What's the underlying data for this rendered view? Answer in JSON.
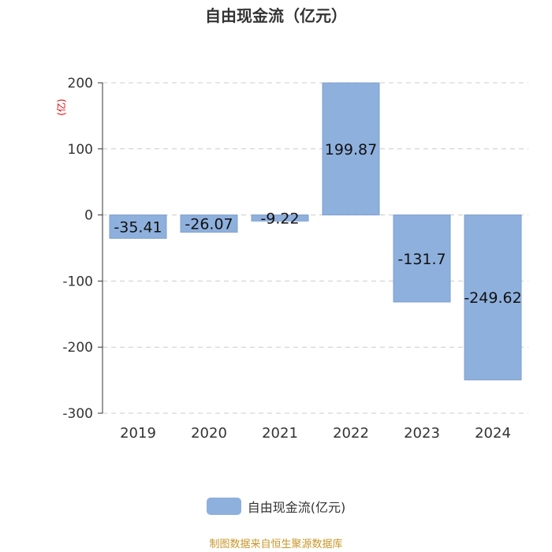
{
  "colors": {
    "bar": "#8eb0dd",
    "bar_border": "#7f9fcf",
    "grid": "#cccccc",
    "axis": "#333333",
    "unit_label": "#e60000",
    "source_text": "#c8962a"
  },
  "chart_data": {
    "type": "bar",
    "title": "自由现金流（亿元）",
    "categories": [
      "2019",
      "2020",
      "2021",
      "2022",
      "2023",
      "2024"
    ],
    "series": [
      {
        "name": "自由现金流(亿元)",
        "values": [
          -35.41,
          -26.07,
          -9.22,
          199.87,
          -131.7,
          -249.62
        ],
        "labels": [
          "-35.41",
          "-26.07",
          "-9.22",
          "199.87",
          "-131.7",
          "-249.62"
        ]
      }
    ],
    "ylabel": "(亿)",
    "ylim": [
      -300,
      200
    ],
    "yticks": [
      200,
      100,
      0,
      -100,
      -200,
      -300
    ],
    "grid": true,
    "legend_position": "bottom"
  },
  "source": "制图数据来自恒生聚源数据库"
}
